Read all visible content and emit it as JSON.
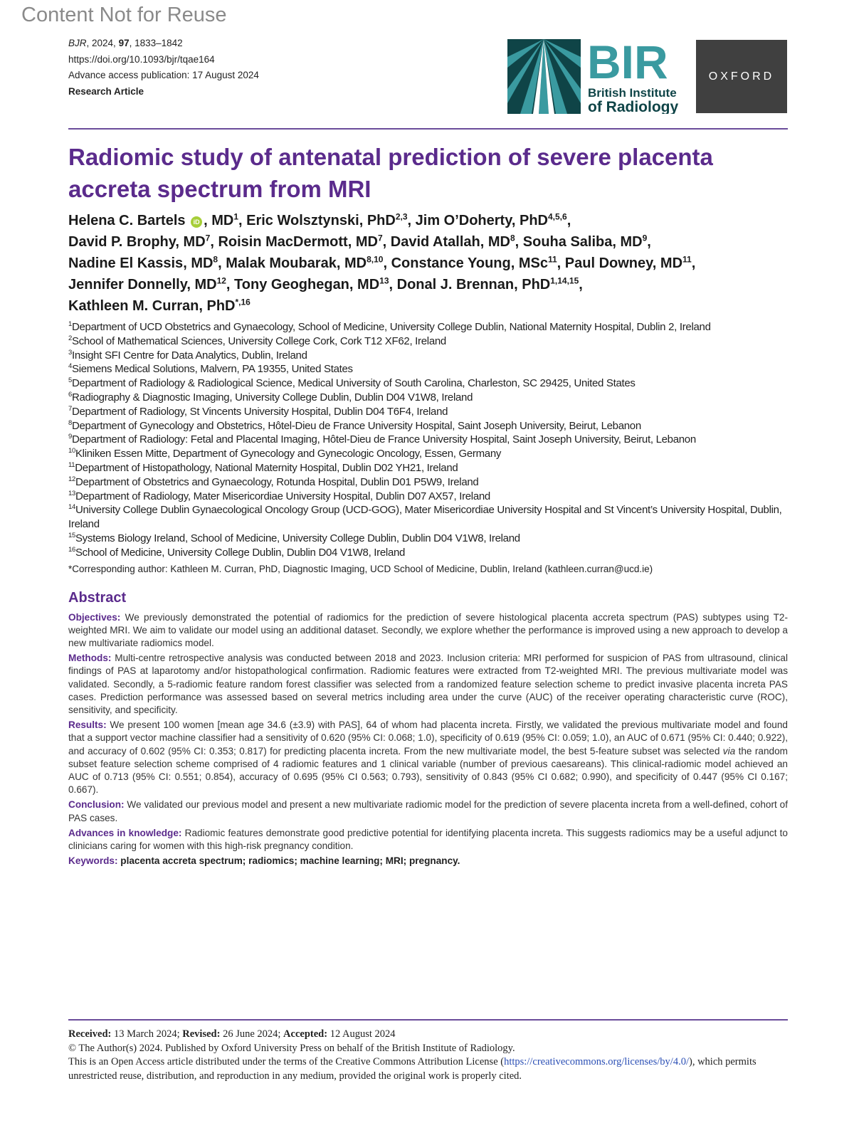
{
  "watermark": "Content Not for Reuse",
  "meta": {
    "journal": "BJR",
    "journal_rest": ", 2024, ",
    "volume": "97",
    "pages": ", 1833–1842",
    "doi": "https://doi.org/10.1093/bjr/tqae164",
    "advance": "Advance access publication: 17 August 2024",
    "type": "Research Article"
  },
  "logos": {
    "bir": "BIR",
    "bir_line1": "British Institute",
    "bir_line2": "of Radiology",
    "oxford": "OXFORD",
    "bir_color": "#3a9aa0",
    "bir_dark": "#0f4447"
  },
  "title": "Radiomic study of antenatal prediction of severe placenta accreta spectrum from MRI",
  "authors": [
    [
      {
        "name": "Helena C. Bartels",
        "orcid": true,
        "deg": "MD",
        "sup": "1"
      },
      {
        "name": "Eric Wolsztynski",
        "deg": "PhD",
        "sup": "2,3"
      },
      {
        "name": "Jim O’Doherty",
        "deg": "PhD",
        "sup": "4,5,6"
      }
    ],
    [
      {
        "name": "David P. Brophy",
        "deg": "MD",
        "sup": "7"
      },
      {
        "name": "Roisin MacDermott",
        "deg": "MD",
        "sup": "7"
      },
      {
        "name": "David Atallah",
        "deg": "MD",
        "sup": "8"
      },
      {
        "name": "Souha Saliba",
        "deg": "MD",
        "sup": "9"
      }
    ],
    [
      {
        "name": "Nadine El Kassis",
        "deg": "MD",
        "sup": "8"
      },
      {
        "name": "Malak Moubarak",
        "deg": "MD",
        "sup": "8,10"
      },
      {
        "name": "Constance Young",
        "deg": "MSc",
        "sup": "11"
      },
      {
        "name": "Paul Downey",
        "deg": "MD",
        "sup": "11"
      }
    ],
    [
      {
        "name": "Jennifer Donnelly",
        "deg": "MD",
        "sup": "12"
      },
      {
        "name": "Tony Geoghegan",
        "deg": "MD",
        "sup": "13"
      },
      {
        "name": "Donal J. Brennan",
        "deg": "PhD",
        "sup": "1,14,15"
      }
    ],
    [
      {
        "name": "Kathleen M. Curran",
        "deg": "PhD",
        "sup": "*,16",
        "last": true
      }
    ]
  ],
  "affiliations": [
    {
      "n": "1",
      "t": "Department of UCD Obstetrics and Gynaecology, School of Medicine, University College Dublin, National Maternity Hospital, Dublin 2, Ireland"
    },
    {
      "n": "2",
      "t": "School of Mathematical Sciences, University College Cork, Cork T12 XF62, Ireland"
    },
    {
      "n": "3",
      "t": "Insight SFI Centre for Data Analytics, Dublin, Ireland"
    },
    {
      "n": "4",
      "t": "Siemens Medical Solutions, Malvern, PA 19355, United States"
    },
    {
      "n": "5",
      "t": "Department of Radiology & Radiological Science, Medical University of South Carolina, Charleston, SC 29425, United States"
    },
    {
      "n": "6",
      "t": "Radiography & Diagnostic Imaging, University College Dublin, Dublin D04 V1W8, Ireland"
    },
    {
      "n": "7",
      "t": "Department of Radiology, St Vincents University Hospital, Dublin D04 T6F4, Ireland"
    },
    {
      "n": "8",
      "t": "Department of Gynecology and Obstetrics, Hôtel-Dieu de France University Hospital, Saint Joseph University, Beirut, Lebanon"
    },
    {
      "n": "9",
      "t": "Department of Radiology: Fetal and Placental Imaging, Hôtel-Dieu de France University Hospital, Saint Joseph University, Beirut, Lebanon"
    },
    {
      "n": "10",
      "t": "Kliniken Essen Mitte, Department of Gynecology and Gynecologic Oncology, Essen, Germany"
    },
    {
      "n": "11",
      "t": "Department of Histopathology, National Maternity Hospital, Dublin D02 YH21, Ireland"
    },
    {
      "n": "12",
      "t": "Department of Obstetrics and Gynaecology, Rotunda Hospital, Dublin D01 P5W9, Ireland"
    },
    {
      "n": "13",
      "t": "Department of Radiology, Mater Misericordiae University Hospital, Dublin D07 AX57, Ireland"
    },
    {
      "n": "14",
      "t": "University College Dublin Gynaecological Oncology Group (UCD-GOG), Mater Misericordiae University Hospital and St Vincent’s University Hospital, Dublin, Ireland"
    },
    {
      "n": "15",
      "t": "Systems Biology Ireland, School of Medicine, University College Dublin, Dublin D04 V1W8, Ireland"
    },
    {
      "n": "16",
      "t": "School of Medicine, University College Dublin, Dublin D04 V1W8, Ireland"
    }
  ],
  "corresponding": "*Corresponding author: Kathleen M. Curran, PhD, Diagnostic Imaging, UCD School of Medicine, Dublin, Ireland (kathleen.curran@ucd.ie)",
  "abstract": {
    "heading": "Abstract",
    "objectives": {
      "label": "Objectives:",
      "text": " We previously demonstrated the potential of radiomics for the prediction of severe histological placenta accreta spectrum (PAS) subtypes using T2-weighted MRI. We aim to validate our model using an additional dataset. Secondly, we explore whether the performance is improved using a new approach to develop a new multivariate radiomics model."
    },
    "methods": {
      "label": "Methods:",
      "text": " Multi-centre retrospective analysis was conducted between 2018 and 2023. Inclusion criteria: MRI performed for suspicion of PAS from ultrasound, clinical findings of PAS at laparotomy and/or histopathological confirmation. Radiomic features were extracted from T2-weighted MRI. The previous multivariate model was validated. Secondly, a 5-radiomic feature random forest classifier was selected from a randomized feature selection scheme to predict invasive placenta increta PAS cases. Prediction performance was assessed based on several metrics including area under the curve (AUC) of the receiver operating characteristic curve (ROC), sensitivity, and specificity."
    },
    "results": {
      "label": "Results:",
      "text1": " We present 100 women [mean age 34.6 (±3.9) with PAS], 64 of whom had placenta increta. Firstly, we validated the previous multivariate model and found that a support vector machine classifier had a sensitivity of 0.620 (95% CI: 0.068; 1.0), specificity of 0.619 (95% CI: 0.059; 1.0), an AUC of 0.671 (95% CI: 0.440; 0.922), and accuracy of 0.602 (95% CI: 0.353; 0.817) for predicting placenta increta. From the new multivariate model, the best 5-feature subset was selected ",
      "italic": "via",
      "text2": " the random subset feature selection scheme comprised of 4 radiomic features and 1 clinical variable (number of previous caesareans). This clinical-radiomic model achieved an AUC of 0.713 (95% CI: 0.551; 0.854), accuracy of 0.695 (95% CI 0.563; 0.793), sensitivity of 0.843 (95% CI 0.682; 0.990), and specificity of 0.447 (95% CI 0.167; 0.667)."
    },
    "conclusion": {
      "label": "Conclusion:",
      "text": " We validated our previous model and present a new multivariate radiomic model for the prediction of severe placenta increta from a well-defined, cohort of PAS cases."
    },
    "advances": {
      "label": "Advances in knowledge:",
      "text": " Radiomic features demonstrate good predictive potential for identifying placenta increta. This suggests radiomics may be a useful adjunct to clinicians caring for women with this high-risk pregnancy condition."
    },
    "keywords": {
      "label": "Keywords:",
      "text": " placenta accreta spectrum; radiomics; machine learning; MRI; pregnancy."
    }
  },
  "footer": {
    "received_label": "Received:",
    "received": " 13 March 2024; ",
    "revised_label": "Revised:",
    "revised": " 26 June 2024; ",
    "accepted_label": "Accepted:",
    "accepted": " 12 August 2024",
    "copyright": "© The Author(s) 2024. Published by Oxford University Press on behalf of the British Institute of Radiology.",
    "license1": "This is an Open Access article distributed under the terms of the Creative Commons Attribution License (",
    "license_url": "https://creativecommons.org/licenses/by/4.0/",
    "license2": "), which permits unrestricted reuse, distribution, and reproduction in any medium, provided the original work is properly cited."
  }
}
